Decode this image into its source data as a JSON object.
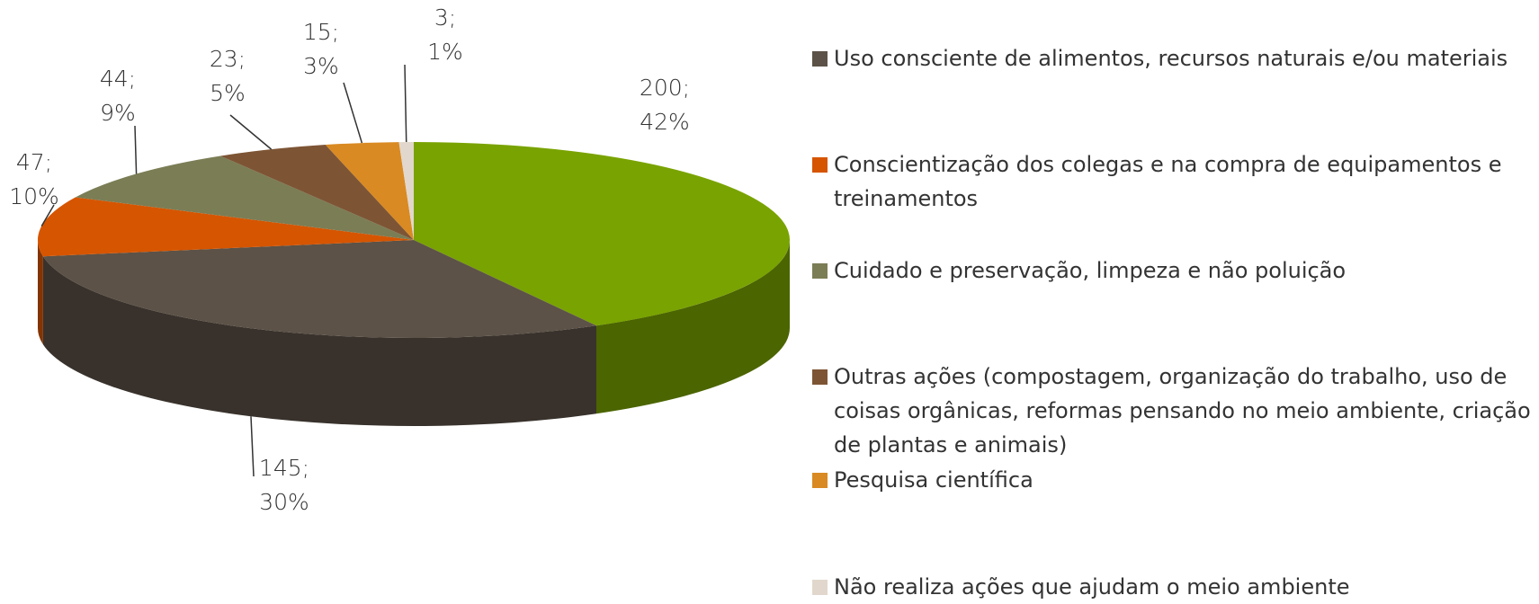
{
  "chart_data": {
    "type": "pie3d",
    "categories": [
      null,
      "Uso consciente de alimentos, recursos naturais e/ou materiais",
      "Conscientização dos colegas e na compra de equipamentos e treinamentos",
      "Cuidado e preservação, limpeza e não poluição",
      "Outras ações (compostagem, organização do trabalho, uso de coisas orgânicas, reformas pensando no meio ambiente, criação de plantas e animais)",
      "Pesquisa científica",
      "Não realiza ações que ajudam o meio ambiente"
    ],
    "values": [
      200,
      145,
      47,
      44,
      23,
      15,
      3
    ],
    "value_labels": [
      "200;",
      "145;",
      "47;",
      "44;",
      "23;",
      "15;",
      "3;"
    ],
    "percents": [
      42,
      30,
      10,
      9,
      5,
      3,
      1
    ],
    "percent_labels": [
      "42%",
      "30%",
      "10%",
      "9%",
      "5%",
      "3%",
      "1%"
    ],
    "colors": [
      "#79a300",
      "#5c5247",
      "#d65500",
      "#7b7d55",
      "#7d5535",
      "#d98a22",
      "#e2d7cc"
    ],
    "legend": "right"
  }
}
